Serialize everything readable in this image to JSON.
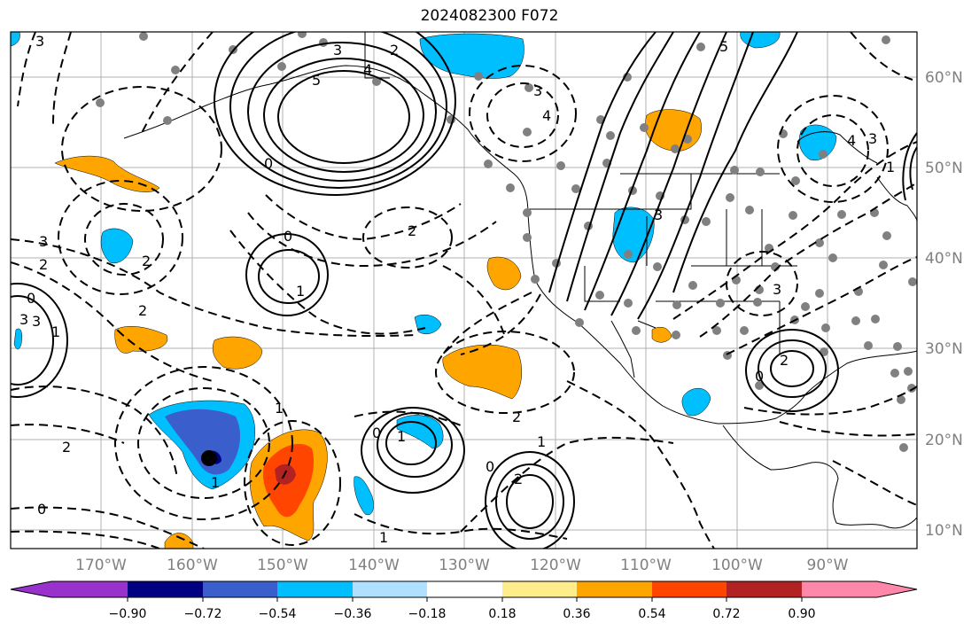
{
  "title": "2024082300 F072",
  "map": {
    "lat_labels": [
      "60°N",
      "50°N",
      "40°N",
      "30°N",
      "20°N",
      "10°N"
    ],
    "lon_labels": [
      "170°W",
      "160°W",
      "150°W",
      "140°W",
      "130°W",
      "120°W",
      "110°W",
      "100°W",
      "90°W"
    ],
    "contour_labels": [
      "3",
      "5",
      "2",
      "4",
      "3",
      "4",
      "3",
      "3",
      "5",
      "4",
      "3",
      "1",
      "0",
      "3",
      "2",
      "0",
      "1",
      "2",
      "2",
      "3",
      "2",
      "3",
      "0",
      "1",
      "2",
      "0",
      "2",
      "1",
      "1",
      "0",
      "0",
      "1",
      "2",
      "2",
      "1",
      "1",
      "0",
      "3"
    ]
  },
  "colorbar": {
    "tick_labels": [
      "−0.90",
      "−0.72",
      "−0.54",
      "−0.36",
      "−0.18",
      "0.18",
      "0.36",
      "0.54",
      "0.72",
      "0.90"
    ],
    "colors": [
      "#9932cc",
      "#000080",
      "#3a5fcd",
      "#00bfff",
      "#b0e0ff",
      "#ffffff",
      "#ffec8b",
      "#ffa500",
      "#ff4500",
      "#b22222",
      "#ff88aa"
    ]
  }
}
